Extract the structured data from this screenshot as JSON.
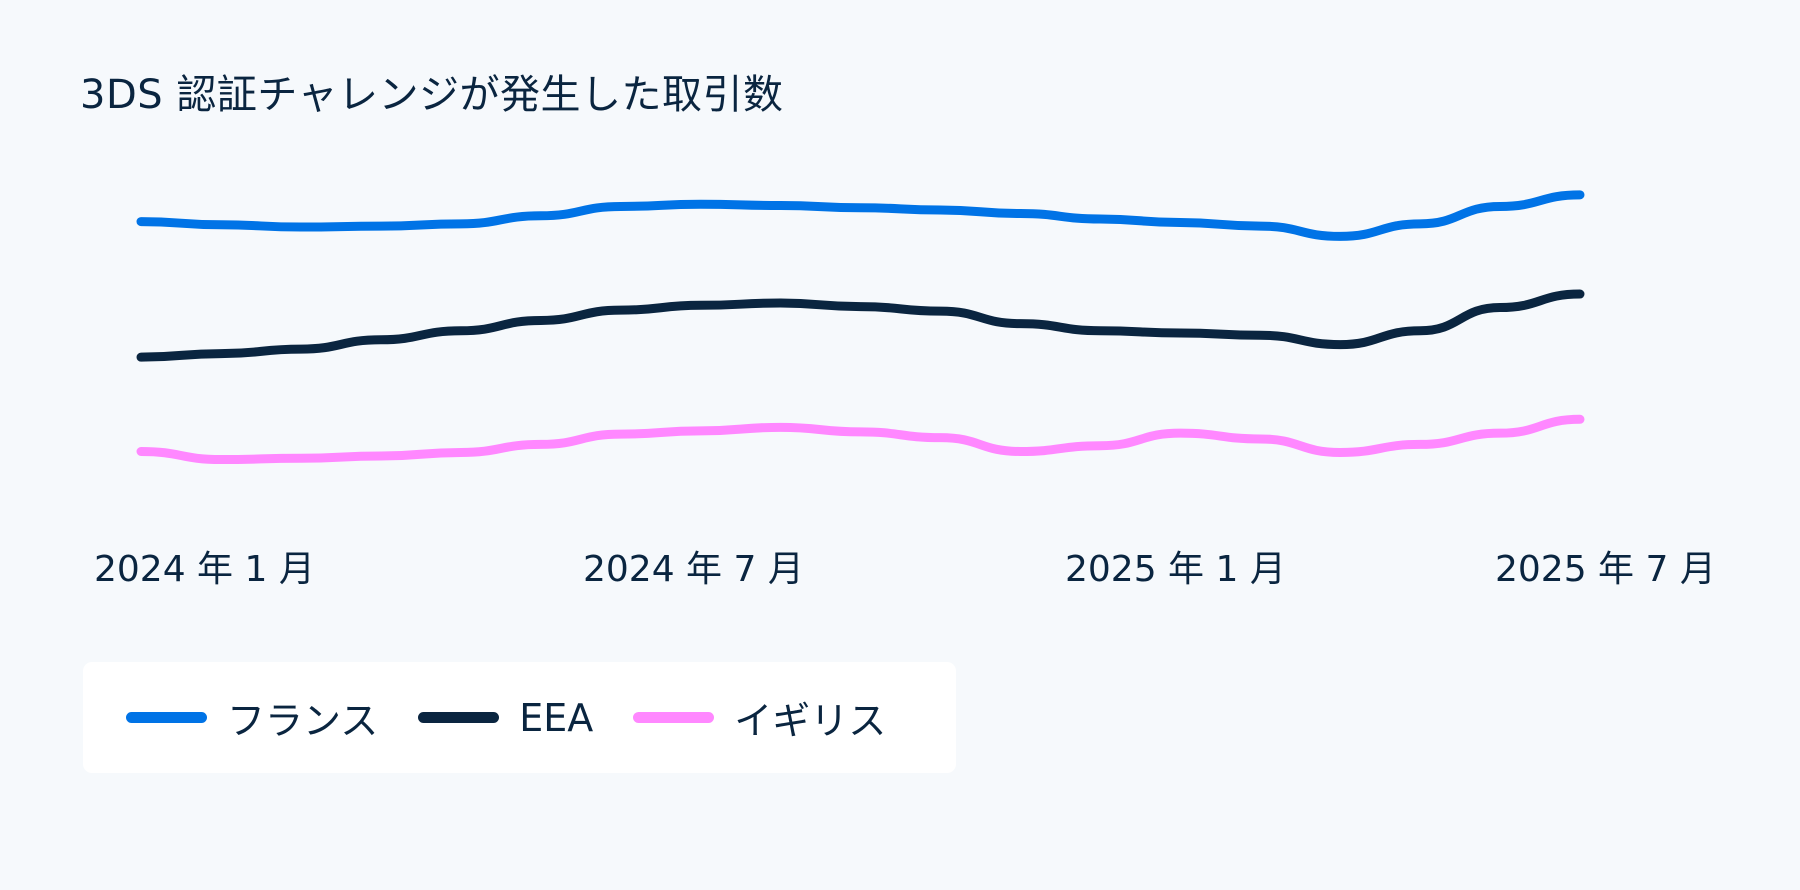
{
  "chart_data": {
    "type": "line",
    "title": "3DS 認証チャレンジが発生した取引数",
    "x": [
      "2024-01",
      "2024-02",
      "2024-03",
      "2024-04",
      "2024-05",
      "2024-06",
      "2024-07",
      "2024-08",
      "2024-09",
      "2024-10",
      "2024-11",
      "2024-12",
      "2025-01",
      "2025-02",
      "2025-03",
      "2025-04",
      "2025-05",
      "2025-06",
      "2025-07"
    ],
    "xtick_labels": [
      "2024 年 1 月",
      "2024 年 7 月",
      "2025 年 1 月",
      "2025 年 7 月"
    ],
    "xtick_index": [
      0,
      6,
      12,
      18
    ],
    "xlabel": "",
    "ylabel": "",
    "y_axis_shown": false,
    "ylim": [
      0,
      100
    ],
    "grid": false,
    "legend_placement": "bottom-left",
    "series": [
      {
        "name": "フランス",
        "color": "#0073e6",
        "values": [
          84.6,
          83.6,
          82.9,
          83.2,
          83.9,
          86.4,
          89.3,
          90.0,
          89.6,
          88.9,
          88.2,
          87.1,
          85.4,
          84.3,
          83.2,
          80.0,
          83.9,
          89.3,
          92.9
        ]
      },
      {
        "name": "EEA",
        "color": "#0a2540",
        "values": [
          42.5,
          43.6,
          45.0,
          47.9,
          50.7,
          53.9,
          57.1,
          58.6,
          59.3,
          58.2,
          56.8,
          52.9,
          50.7,
          50.0,
          49.3,
          46.4,
          50.7,
          57.9,
          62.1
        ]
      },
      {
        "name": "イギリス",
        "color": "#ff88ff",
        "values": [
          13.2,
          10.7,
          11.1,
          11.8,
          12.9,
          15.4,
          18.6,
          19.6,
          20.7,
          19.3,
          17.5,
          13.2,
          15.0,
          18.9,
          17.1,
          12.9,
          15.4,
          18.9,
          23.2
        ]
      }
    ]
  }
}
